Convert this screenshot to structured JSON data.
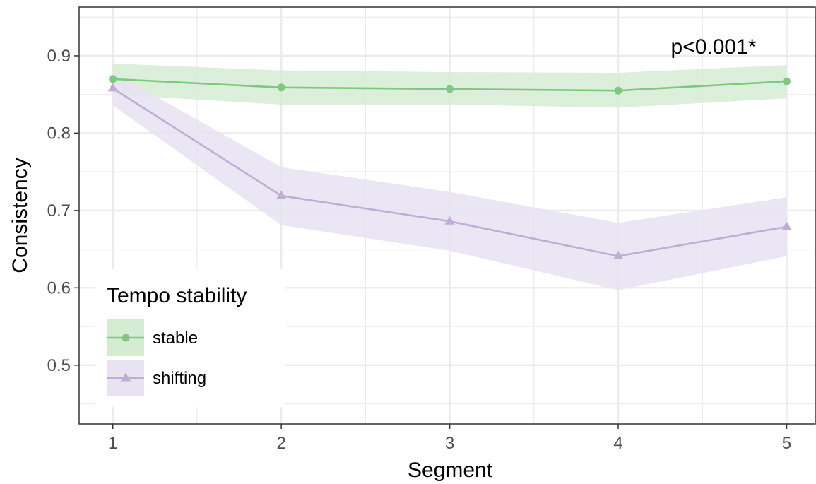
{
  "chart_data": {
    "type": "line",
    "x": [
      1,
      2,
      3,
      4,
      5
    ],
    "xlabel": "Segment",
    "ylabel": "Consistency",
    "xlim": [
      0.8,
      5.17
    ],
    "ylim": [
      0.424,
      0.963
    ],
    "x_ticks": [
      "1",
      "2",
      "3",
      "4",
      "5"
    ],
    "y_ticks": [
      "0.5",
      "0.6",
      "0.7",
      "0.8",
      "0.9"
    ],
    "y_tick_values": [
      0.5,
      0.6,
      0.7,
      0.8,
      0.9
    ],
    "grid": true,
    "legend": {
      "title": "Tempo stability",
      "position": "bottom-left"
    },
    "annotation": "p<0.001*",
    "series": [
      {
        "name": "stable",
        "marker": "circle",
        "color": "#7fc97f",
        "band_color": "#d5ecd3",
        "values": [
          0.87,
          0.859,
          0.857,
          0.855,
          0.867
        ],
        "lower": [
          0.85,
          0.837,
          0.837,
          0.833,
          0.845
        ],
        "upper": [
          0.89,
          0.881,
          0.879,
          0.878,
          0.888
        ]
      },
      {
        "name": "shifting",
        "marker": "triangle",
        "color": "#beaed4",
        "band_color": "#e8e2f1",
        "values": [
          0.858,
          0.719,
          0.686,
          0.641,
          0.679
        ],
        "lower": [
          0.836,
          0.681,
          0.648,
          0.597,
          0.641
        ],
        "upper": [
          0.879,
          0.756,
          0.724,
          0.684,
          0.717
        ]
      }
    ]
  }
}
